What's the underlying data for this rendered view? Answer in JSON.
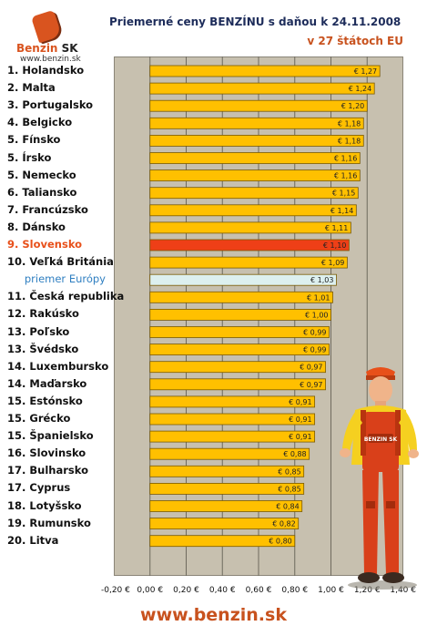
{
  "logo": {
    "name_main": "Benzin",
    "name_suffix": "SK",
    "url": "www.benzin.sk"
  },
  "footer": {
    "url": "www.benzin.sk"
  },
  "colors": {
    "bar": "#ffc000",
    "bar_border": "#7a5a00",
    "highlight_bar": "#ee3f17",
    "average_bar": "#ddf0ef",
    "highlight_label": "#e8501a",
    "average_label": "#2f7fc1",
    "background_plot": "#c7c0af"
  },
  "mascot": {
    "icon": "gas-station-worker-figure",
    "shirt_text": "BENZIN SK"
  },
  "chart_data": {
    "type": "bar",
    "orientation": "horizontal",
    "title": "Priemerné ceny BENZÍNU s daňou k 24.11.2008",
    "subtitle": "v 27 štátoch EU",
    "xlabel": "",
    "ylabel": "",
    "xlim": [
      -0.2,
      1.4
    ],
    "x_ticks": [
      -0.2,
      0.0,
      0.2,
      0.4,
      0.6,
      0.8,
      1.0,
      1.2,
      1.4
    ],
    "x_tick_labels": [
      "-0,20 €",
      "0,00 €",
      "0,20 €",
      "0,40 €",
      "0,60 €",
      "0,80 €",
      "1,00 €",
      "1,20 €",
      "1,40 €"
    ],
    "grid": true,
    "categories": [
      "1. Holandsko",
      "2. Malta",
      "3. Portugalsko",
      "4. Belgicko",
      "5. Fínsko",
      "5. Írsko",
      "5. Nemecko",
      "6. Taliansko",
      "7. Francúzsko",
      "8. Dánsko",
      "9. Slovensko",
      "10. Veľká Británia",
      "priemer Európy",
      "11. Česká republika",
      "12. Rakúsko",
      "13. Poľsko",
      "13. Švédsko",
      "14. Luxembursko",
      "14. Maďarsko",
      "15. Estónsko",
      "15. Grécko",
      "15. Španielsko",
      "16. Slovinsko",
      "17. Bulharsko",
      "17. Cyprus",
      "18. Lotyšsko",
      "19. Rumunsko",
      "20. Litva"
    ],
    "values": [
      1.27,
      1.24,
      1.2,
      1.18,
      1.18,
      1.16,
      1.16,
      1.15,
      1.14,
      1.11,
      1.1,
      1.09,
      1.03,
      1.01,
      1.0,
      0.99,
      0.99,
      0.97,
      0.97,
      0.91,
      0.91,
      0.91,
      0.88,
      0.85,
      0.85,
      0.84,
      0.82,
      0.8
    ],
    "value_labels": [
      "€ 1,27",
      "€ 1,24",
      "€ 1,20",
      "€ 1,18",
      "€ 1,18",
      "€ 1,16",
      "€ 1,16",
      "€ 1,15",
      "€ 1,14",
      "€ 1,11",
      "€ 1,10",
      "€ 1,09",
      "€ 1,03",
      "€ 1,01",
      "€ 1,00",
      "€ 0,99",
      "€ 0,99",
      "€ 0,97",
      "€ 0,97",
      "€ 0,91",
      "€ 0,91",
      "€ 0,91",
      "€ 0,88",
      "€ 0,85",
      "€ 0,85",
      "€ 0,84",
      "€ 0,82",
      "€ 0,80"
    ],
    "highlight_index": 10,
    "average_index": 12
  }
}
